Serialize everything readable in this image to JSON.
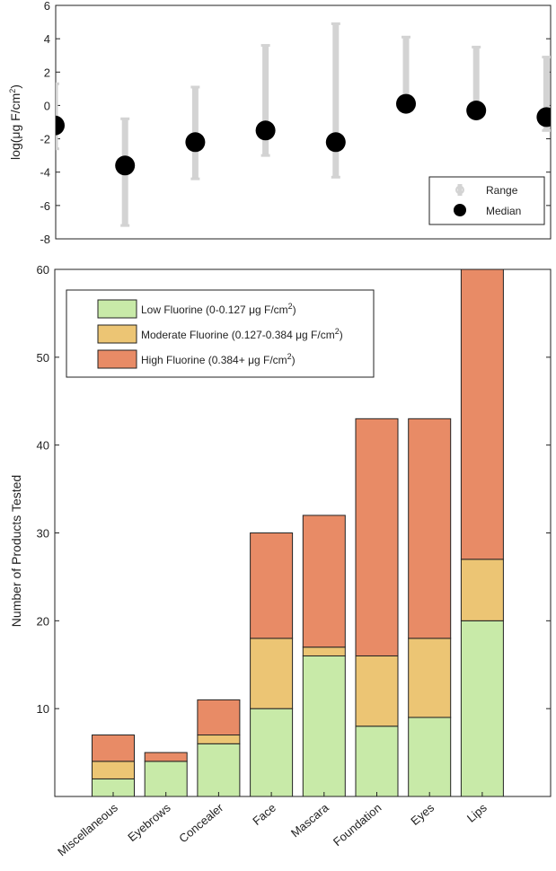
{
  "chart_data": [
    {
      "type": "scatter",
      "ylabel": "log(μg F/cm²)",
      "ylabel_parts": {
        "base": "log(μg F/cm",
        "sup": "2",
        "close": ")"
      },
      "ylim": [
        -8,
        6
      ],
      "yticks": [
        -8,
        -6,
        -4,
        -2,
        0,
        2,
        4,
        6
      ],
      "categories": [
        "Miscellaneous",
        "Eyebrows",
        "Concealer",
        "Face",
        "Mascara",
        "Foundation",
        "Eyes",
        "Lips"
      ],
      "median": [
        -1.2,
        -3.6,
        -2.2,
        -1.5,
        -2.2,
        0.1,
        -0.3,
        -0.7
      ],
      "range_min": [
        -2.6,
        -7.2,
        -4.4,
        -3.0,
        -4.3,
        -0.2,
        -0.6,
        -1.5
      ],
      "range_max": [
        1.3,
        -0.8,
        1.1,
        3.6,
        4.9,
        4.1,
        3.5,
        2.9
      ],
      "colors": {
        "range": "#d3d3d3",
        "median": "#000000"
      },
      "legend": {
        "position": "bottom-right",
        "items": [
          "Range",
          "Median"
        ]
      }
    },
    {
      "type": "bar",
      "stacked": true,
      "ylabel": "Number of Products Tested",
      "ylim": [
        0,
        60
      ],
      "yticks": [
        10,
        20,
        30,
        40,
        50,
        60
      ],
      "categories": [
        "Miscellaneous",
        "Eyebrows",
        "Concealer",
        "Face",
        "Mascara",
        "Foundation",
        "Eyes",
        "Lips"
      ],
      "series": [
        {
          "name": "Low Fluorine (0-0.127 μg F/cm²)",
          "name_base": "Low Fluorine (0-0.127 μg F/cm",
          "name_sup": "2",
          "name_close": ")",
          "color": "#c8eaa8",
          "values": [
            2,
            4,
            6,
            10,
            16,
            8,
            9,
            20
          ]
        },
        {
          "name": "Moderate Fluorine (0.127-0.384 μg F/cm²)",
          "name_base": "Moderate Fluorine (0.127-0.384 μg F/cm",
          "name_sup": "2",
          "name_close": ")",
          "color": "#ecc574",
          "values": [
            2,
            0,
            1,
            8,
            1,
            8,
            9,
            7
          ]
        },
        {
          "name": "High Fluorine (0.384+ μg F/cm²)",
          "name_base": "High Fluorine (0.384+ μg F/cm",
          "name_sup": "2",
          "name_close": ")",
          "color": "#e88b66",
          "values": [
            3,
            1,
            4,
            12,
            15,
            27,
            25,
            33
          ]
        }
      ],
      "legend": {
        "position": "top-left"
      }
    }
  ]
}
